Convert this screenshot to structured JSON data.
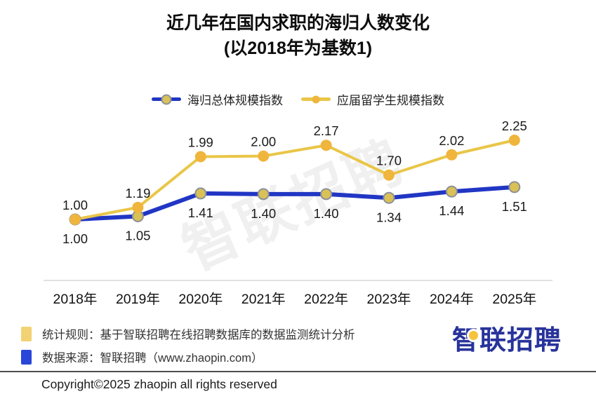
{
  "title": {
    "line1": "近几年在国内求职的海归人数变化",
    "line2": "(以2018年为基数1)"
  },
  "watermark": "智联招聘",
  "chart_data": {
    "type": "line",
    "categories": [
      "2018年",
      "2019年",
      "2020年",
      "2021年",
      "2022年",
      "2023年",
      "2024年",
      "2025年"
    ],
    "series": [
      {
        "name": "海归总体规模指数",
        "values": [
          1.0,
          1.05,
          1.41,
          1.4,
          1.4,
          1.34,
          1.44,
          1.51
        ],
        "line_color": "#2136C4",
        "marker_fill": "#D9C157",
        "marker_stroke": "#8C9099",
        "label_position": "below"
      },
      {
        "name": "应届留学生规模指数",
        "values": [
          1.0,
          1.19,
          1.99,
          2.0,
          2.17,
          1.7,
          2.02,
          2.25
        ],
        "line_color": "#E9C648",
        "marker_fill": "#F0B53C",
        "marker_stroke": "#EDBE43",
        "label_position": "above"
      }
    ],
    "ylim": [
      1.0,
      2.25
    ],
    "grid": false,
    "legend_position": "top",
    "value_label_color": "#1a1a1a",
    "axis_line_color": "#d8d8d8",
    "x_label_color": "#111111"
  },
  "footer": {
    "rule_note": "统计规则：基于智联招聘在线招聘数据库的数据监测统计分析",
    "source_note": "数据来源：智联招聘（www.zhaopin.com）",
    "copyright": "Copyright©2025 zhaopin all rights reserved",
    "logo_text": "智联招聘"
  },
  "colors": {
    "note_square_yellow": "#F2D272",
    "note_square_blue": "#2946D8",
    "logo_blue": "#28339B",
    "logo_dot_yellow": "#F6C33C",
    "watermark_gray": "rgba(140,140,140,0.13)"
  }
}
